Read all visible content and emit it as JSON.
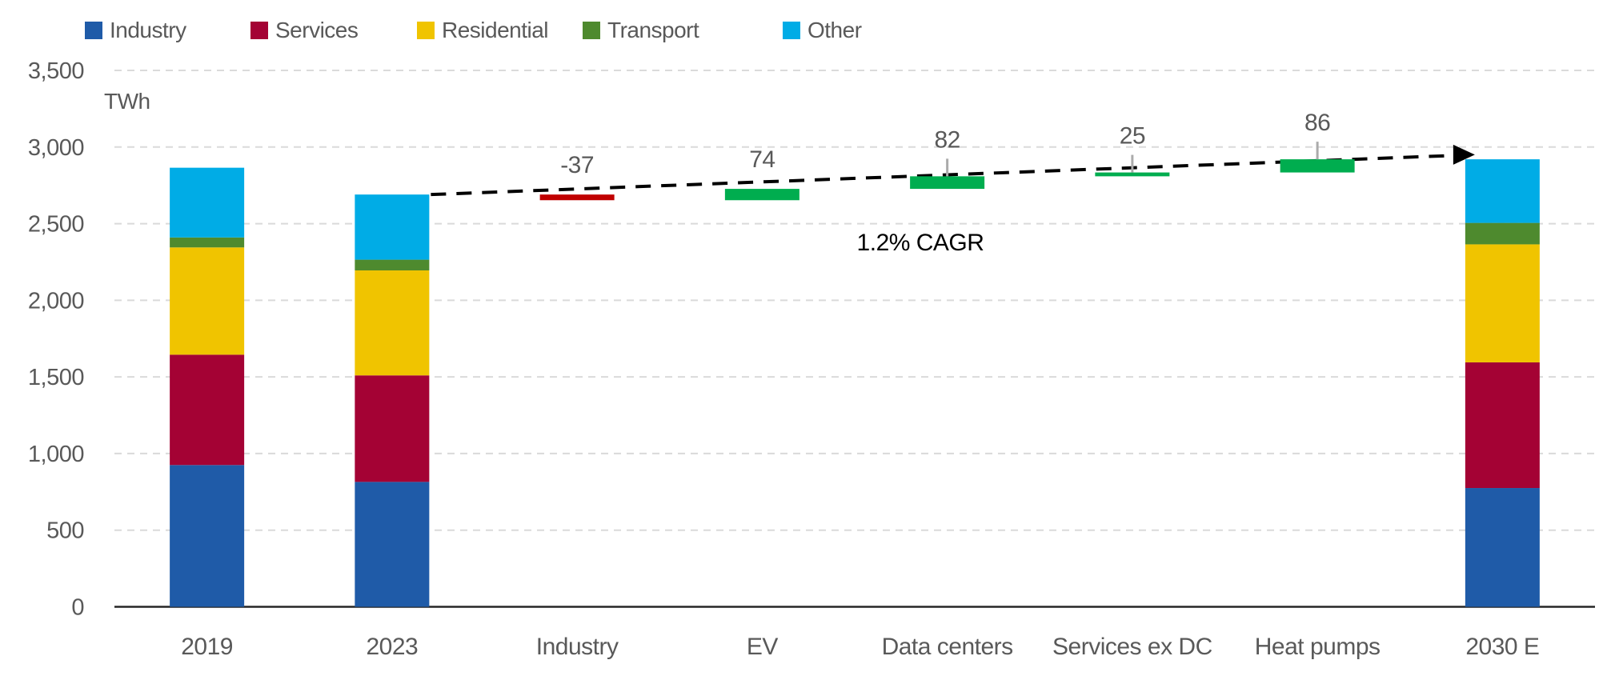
{
  "legend": {
    "items": [
      {
        "label": "Industry",
        "color": "#1F5BA8"
      },
      {
        "label": "Services",
        "color": "#A40234"
      },
      {
        "label": "Residential",
        "color": "#F0C400"
      },
      {
        "label": "Transport",
        "color": "#4E8A2E"
      },
      {
        "label": "Other",
        "color": "#00ACE6"
      }
    ]
  },
  "chart_data": {
    "type": "bar",
    "subtype": "stacked-bars-with-waterfall",
    "unit_label": "TWh",
    "ylim": [
      0,
      3500
    ],
    "ytick_interval": 500,
    "ytick_labels": [
      "0",
      "500",
      "1,000",
      "1,500",
      "2,000",
      "2,500",
      "3,000",
      "3,500"
    ],
    "grid": "dashed-horizontal",
    "legend_position": "top-left",
    "categories": [
      "2019",
      "2023",
      "Industry",
      "EV",
      "Data centers",
      "Services ex DC",
      "Heat pumps",
      "2030 E"
    ],
    "series_order": [
      "Industry",
      "Services",
      "Residential",
      "Transport",
      "Other"
    ],
    "series_colors": {
      "Industry": "#1F5BA8",
      "Services": "#A40234",
      "Residential": "#F0C400",
      "Transport": "#4E8A2E",
      "Other": "#00ACE6"
    },
    "stacked_bars": [
      {
        "category": "2019",
        "total": 2865,
        "segments": {
          "Industry": 925,
          "Services": 720,
          "Residential": 700,
          "Transport": 65,
          "Other": 455
        }
      },
      {
        "category": "2023",
        "total": 2690,
        "segments": {
          "Industry": 815,
          "Services": 695,
          "Residential": 685,
          "Transport": 70,
          "Other": 425
        }
      },
      {
        "category": "2030 E",
        "total": 2920,
        "segments": {
          "Industry": 775,
          "Services": 820,
          "Residential": 770,
          "Transport": 140,
          "Other": 415
        }
      }
    ],
    "waterfall_steps": [
      {
        "category": "Industry",
        "label": "-37",
        "change": -37,
        "from": 2690,
        "to": 2653,
        "whisker": false
      },
      {
        "category": "EV",
        "label": "74",
        "change": 74,
        "from": 2653,
        "to": 2727,
        "whisker": false
      },
      {
        "category": "Data centers",
        "label": "82",
        "change": 82,
        "from": 2727,
        "to": 2809,
        "whisker": true
      },
      {
        "category": "Services ex DC",
        "label": "25",
        "change": 25,
        "from": 2809,
        "to": 2834,
        "whisker": true
      },
      {
        "category": "Heat pumps",
        "label": "86",
        "change": 86,
        "from": 2834,
        "to": 2920,
        "whisker": true
      }
    ],
    "waterfall_colors": {
      "increase": "#00AD4F",
      "decrease": "#C00000"
    },
    "trend": {
      "label": "1.2% CAGR",
      "style": "dashed-arrow",
      "start_category": "2023",
      "end_category": "2030 E",
      "start_value": 2690,
      "end_value": 2950
    },
    "axis_colors": {
      "gridline": "#DADADA",
      "axis_line": "#262626",
      "whisker": "#ABABAB",
      "trend_line": "#000000"
    }
  }
}
